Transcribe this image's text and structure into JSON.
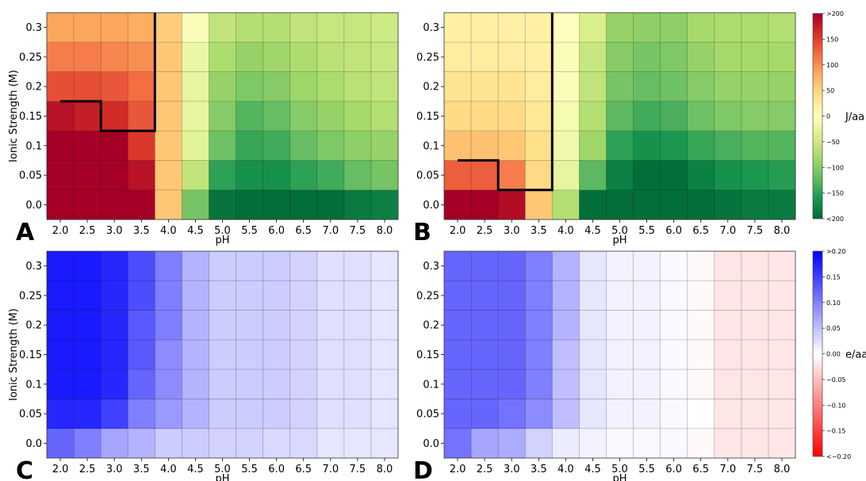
{
  "figure": {
    "colorbar_top": {
      "label": "J/aa",
      "ticks": [
        "-200",
        "-150",
        "-100",
        "-50",
        "0",
        "50",
        "100",
        "150",
        "200"
      ],
      "tick_labels": [
        "<200",
        "−150",
        "−100",
        "−50",
        "0",
        "50",
        "100",
        "150",
        ">200"
      ],
      "min": -200,
      "max": 200,
      "colormap": "RdYlGn_r",
      "colors": {
        "low": "#006837",
        "mid": "#ffffbf",
        "high": "#a50026"
      }
    },
    "colorbar_bottom": {
      "label": "e/aa",
      "ticks": [
        "-0.20",
        "-0.15",
        "-0.10",
        "-0.05",
        "0.00",
        "0.05",
        "0.10",
        "0.15",
        "0.20"
      ],
      "tick_labels": [
        "<−0.20",
        "−0.15",
        "−0.10",
        "−0.05",
        "0.00",
        "0.05",
        "0.10",
        "0.15",
        ">0.20"
      ],
      "min": -0.2,
      "max": 0.2,
      "colormap": "bwr_r",
      "colors": {
        "low": "#ff0000",
        "mid": "#ffffff",
        "high": "#0000ff"
      }
    }
  },
  "chart_data": [
    {
      "type": "heatmap",
      "panel_letter": "A",
      "xlabel": "pH",
      "ylabel": "Ionic Strength (M)",
      "x": [
        "2.0",
        "2.5",
        "3.0",
        "3.5",
        "4.0",
        "4.5",
        "5.0",
        "5.5",
        "6.0",
        "6.5",
        "7.0",
        "7.5",
        "8.0"
      ],
      "y": [
        "0.0",
        "0.05",
        "0.1",
        "0.15",
        "0.2",
        "0.25",
        "0.3"
      ],
      "colorbar": "top",
      "values": [
        [
          200,
          200,
          200,
          200,
          60,
          -110,
          -190,
          -195,
          -195,
          -195,
          -195,
          -185,
          -180
        ],
        [
          200,
          200,
          200,
          185,
          60,
          -60,
          -150,
          -165,
          -165,
          -150,
          -140,
          -120,
          -110
        ],
        [
          200,
          200,
          200,
          155,
          60,
          -30,
          -115,
          -145,
          -140,
          -120,
          -105,
          -95,
          -90
        ],
        [
          185,
          175,
          165,
          135,
          60,
          -25,
          -100,
          -130,
          -120,
          -100,
          -90,
          -80,
          -70
        ],
        [
          140,
          140,
          135,
          120,
          60,
          -25,
          -90,
          -105,
          -100,
          -85,
          -75,
          -65,
          -60
        ],
        [
          110,
          110,
          105,
          100,
          60,
          -20,
          -75,
          -90,
          -85,
          -75,
          -65,
          -60,
          -55
        ],
        [
          85,
          85,
          85,
          80,
          55,
          -5,
          -60,
          -70,
          -70,
          -60,
          -55,
          -55,
          -50
        ]
      ],
      "boundary": {
        "description": "stepped black line",
        "vertices_pH_M": [
          [
            2.0,
            0.175
          ],
          [
            2.75,
            0.175
          ],
          [
            2.75,
            0.125
          ],
          [
            3.75,
            0.125
          ],
          [
            3.75,
            0.325
          ]
        ]
      }
    },
    {
      "type": "heatmap",
      "panel_letter": "B",
      "xlabel": "pH",
      "ylabel": "",
      "x": [
        "2.0",
        "2.5",
        "3.0",
        "3.5",
        "4.0",
        "4.5",
        "5.0",
        "5.5",
        "6.0",
        "6.5",
        "7.0",
        "7.5",
        "8.0"
      ],
      "y": [
        "0.0",
        "0.05",
        "0.1",
        "0.15",
        "0.2",
        "0.25",
        "0.3"
      ],
      "colorbar": "top",
      "values": [
        [
          200,
          200,
          190,
          60,
          -70,
          -195,
          -195,
          -195,
          -195,
          -195,
          -190,
          -185,
          -185
        ],
        [
          130,
          130,
          110,
          45,
          -25,
          -125,
          -180,
          -195,
          -195,
          -180,
          -165,
          -160,
          -155
        ],
        [
          65,
          65,
          60,
          40,
          -15,
          -85,
          -150,
          -165,
          -160,
          -145,
          -135,
          -130,
          -130
        ],
        [
          45,
          45,
          45,
          30,
          -10,
          -70,
          -125,
          -140,
          -135,
          -115,
          -105,
          -100,
          -100
        ],
        [
          35,
          35,
          35,
          25,
          -5,
          -60,
          -110,
          -120,
          -115,
          -100,
          -90,
          -90,
          -90
        ],
        [
          25,
          25,
          25,
          20,
          -5,
          -55,
          -100,
          -110,
          -105,
          -90,
          -80,
          -80,
          -80
        ],
        [
          20,
          20,
          20,
          20,
          0,
          -40,
          -90,
          -95,
          -95,
          -80,
          -75,
          -75,
          -70
        ]
      ],
      "boundary": {
        "description": "stepped black line",
        "vertices_pH_M": [
          [
            2.0,
            0.075
          ],
          [
            2.75,
            0.075
          ],
          [
            2.75,
            0.025
          ],
          [
            3.75,
            0.025
          ],
          [
            3.75,
            0.325
          ]
        ]
      }
    },
    {
      "type": "heatmap",
      "panel_letter": "C",
      "xlabel": "pH",
      "ylabel": "Ionic Strength (M)",
      "x": [
        "2.0",
        "2.5",
        "3.0",
        "3.5",
        "4.0",
        "4.5",
        "5.0",
        "5.5",
        "6.0",
        "6.5",
        "7.0",
        "7.5",
        "8.0"
      ],
      "y": [
        "0.0",
        "0.05",
        "0.1",
        "0.15",
        "0.2",
        "0.25",
        "0.3"
      ],
      "colorbar": "bottom",
      "values": [
        [
          0.12,
          0.1,
          0.07,
          0.06,
          0.04,
          0.04,
          0.035,
          0.035,
          0.03,
          0.03,
          0.02,
          0.02,
          0.02
        ],
        [
          0.17,
          0.17,
          0.15,
          0.1,
          0.08,
          0.06,
          0.04,
          0.04,
          0.04,
          0.035,
          0.025,
          0.025,
          0.02
        ],
        [
          0.18,
          0.18,
          0.17,
          0.12,
          0.09,
          0.06,
          0.04,
          0.04,
          0.04,
          0.035,
          0.025,
          0.025,
          0.02
        ],
        [
          0.18,
          0.18,
          0.17,
          0.13,
          0.09,
          0.06,
          0.04,
          0.04,
          0.04,
          0.035,
          0.025,
          0.025,
          0.02
        ],
        [
          0.18,
          0.18,
          0.17,
          0.13,
          0.1,
          0.06,
          0.04,
          0.04,
          0.04,
          0.035,
          0.025,
          0.025,
          0.02
        ],
        [
          0.18,
          0.18,
          0.17,
          0.14,
          0.1,
          0.06,
          0.04,
          0.04,
          0.04,
          0.035,
          0.025,
          0.025,
          0.02
        ],
        [
          0.18,
          0.18,
          0.17,
          0.14,
          0.1,
          0.06,
          0.04,
          0.04,
          0.04,
          0.035,
          0.025,
          0.025,
          0.02
        ]
      ]
    },
    {
      "type": "heatmap",
      "panel_letter": "D",
      "xlabel": "pH",
      "ylabel": "",
      "x": [
        "2.0",
        "2.5",
        "3.0",
        "3.5",
        "4.0",
        "4.5",
        "5.0",
        "5.5",
        "6.0",
        "6.5",
        "7.0",
        "7.5",
        "8.0"
      ],
      "y": [
        "0.0",
        "0.05",
        "0.1",
        "0.15",
        "0.2",
        "0.25",
        "0.3"
      ],
      "colorbar": "bottom",
      "values": [
        [
          0.11,
          0.07,
          0.065,
          0.035,
          0.015,
          0.01,
          0.005,
          0.005,
          0.005,
          -0.005,
          -0.02,
          -0.02,
          -0.02
        ],
        [
          0.12,
          0.12,
          0.11,
          0.09,
          0.05,
          0.02,
          0.01,
          0.01,
          0.005,
          0.0,
          -0.02,
          -0.02,
          -0.02
        ],
        [
          0.12,
          0.12,
          0.12,
          0.1,
          0.05,
          0.02,
          0.01,
          0.01,
          0.005,
          -0.005,
          -0.02,
          -0.02,
          -0.02
        ],
        [
          0.12,
          0.12,
          0.12,
          0.1,
          0.05,
          0.02,
          0.01,
          0.01,
          0.005,
          -0.005,
          -0.02,
          -0.02,
          -0.02
        ],
        [
          0.12,
          0.12,
          0.12,
          0.1,
          0.06,
          0.02,
          0.01,
          0.01,
          0.005,
          -0.005,
          -0.02,
          -0.02,
          -0.02
        ],
        [
          0.12,
          0.12,
          0.12,
          0.1,
          0.06,
          0.02,
          0.01,
          0.01,
          0.005,
          -0.005,
          -0.02,
          -0.02,
          -0.02
        ],
        [
          0.12,
          0.12,
          0.12,
          0.1,
          0.06,
          0.02,
          0.01,
          0.01,
          0.005,
          -0.005,
          -0.02,
          -0.02,
          -0.02
        ]
      ]
    }
  ]
}
